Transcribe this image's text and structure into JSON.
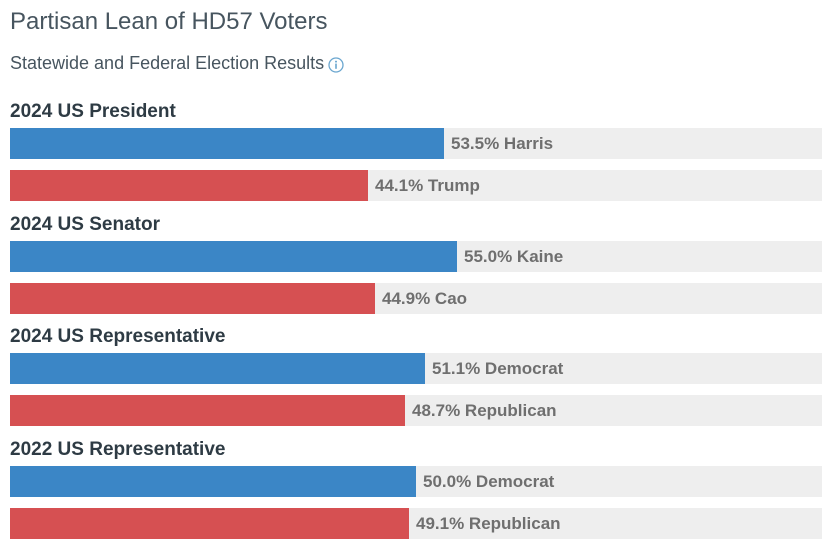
{
  "header": {
    "title": "Partisan Lean of HD57 Voters",
    "subtitle": "Statewide and Federal Election Results",
    "info_icon": "info-icon"
  },
  "colors": {
    "democrat": "#3b86c6",
    "republican": "#d65052",
    "track": "#eeeeee"
  },
  "chart_data": {
    "type": "bar",
    "orientation": "horizontal",
    "xlim": [
      0,
      100
    ],
    "unit": "%",
    "groups": [
      {
        "label": "2024 US President",
        "bars": [
          {
            "label": "53.5% Harris",
            "value": 53.5,
            "party": "democrat"
          },
          {
            "label": "44.1% Trump",
            "value": 44.1,
            "party": "republican"
          }
        ]
      },
      {
        "label": "2024 US Senator",
        "bars": [
          {
            "label": "55.0% Kaine",
            "value": 55.0,
            "party": "democrat"
          },
          {
            "label": "44.9% Cao",
            "value": 44.9,
            "party": "republican"
          }
        ]
      },
      {
        "label": "2024 US Representative",
        "bars": [
          {
            "label": "51.1% Democrat",
            "value": 51.1,
            "party": "democrat"
          },
          {
            "label": "48.7% Republican",
            "value": 48.7,
            "party": "republican"
          }
        ]
      },
      {
        "label": "2022 US Representative",
        "bars": [
          {
            "label": "50.0% Democrat",
            "value": 50.0,
            "party": "democrat"
          },
          {
            "label": "49.1% Republican",
            "value": 49.1,
            "party": "republican"
          }
        ]
      }
    ]
  }
}
